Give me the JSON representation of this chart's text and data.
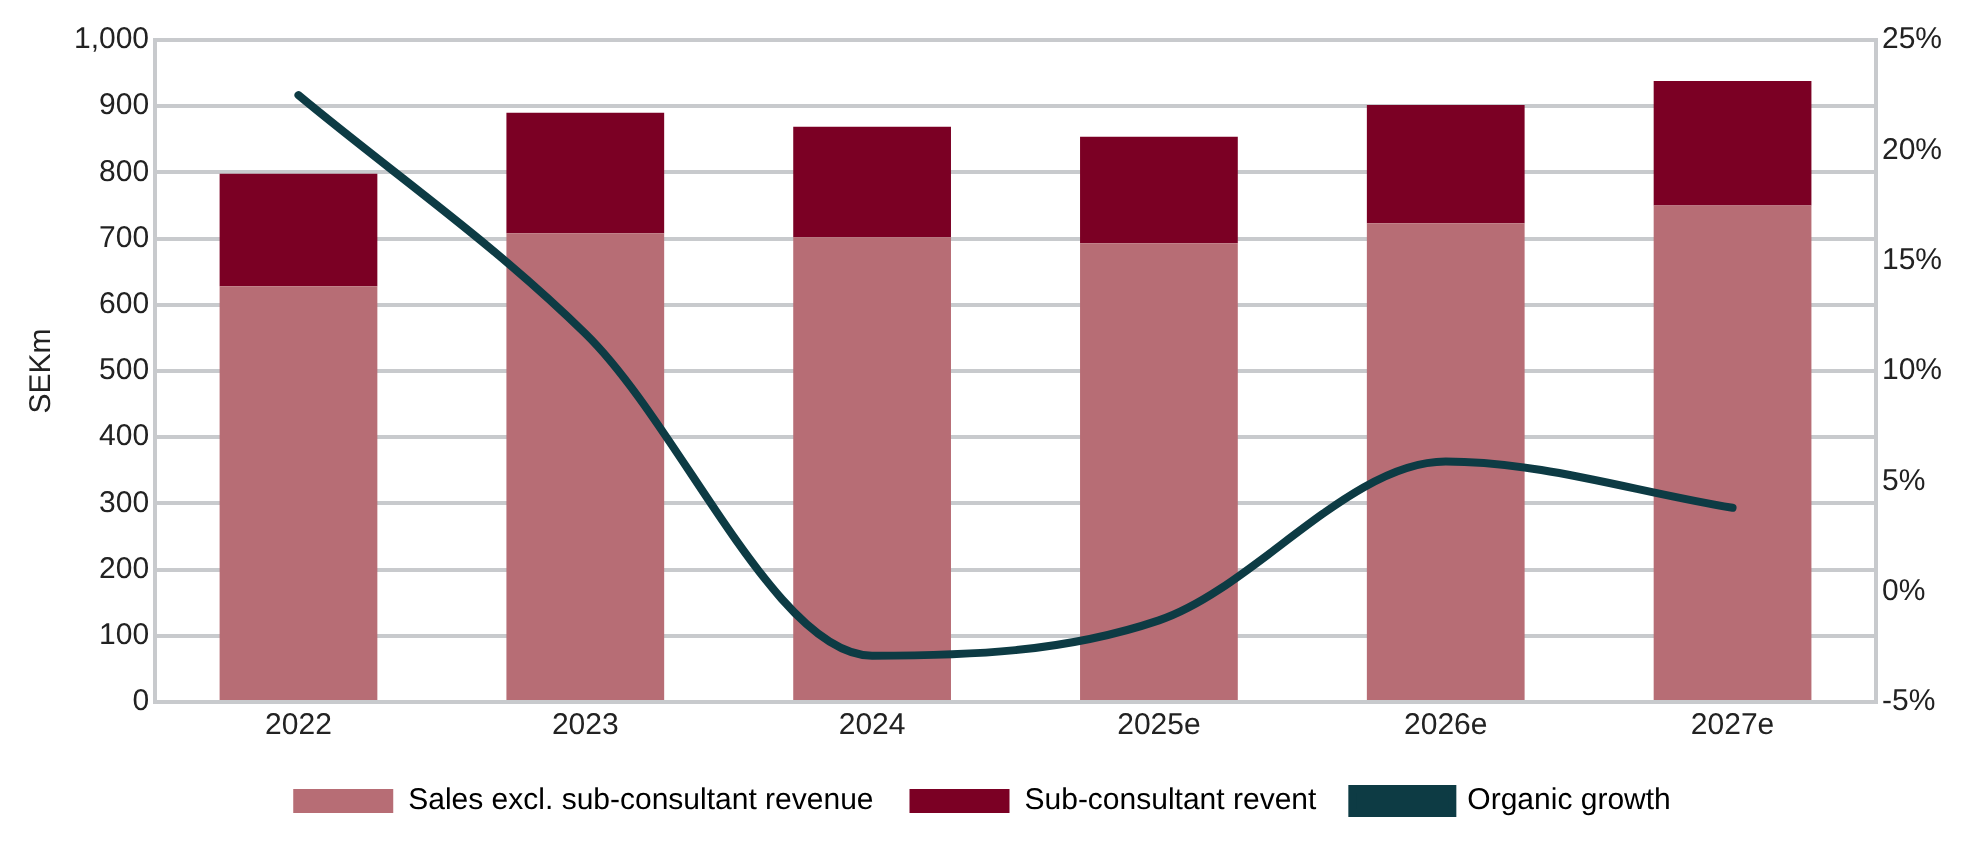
{
  "chart_data": {
    "type": "bar",
    "stacked": true,
    "ylabel": "SEKm",
    "categories": [
      "2022",
      "2023",
      "2024",
      "2025e",
      "2026e",
      "2027e"
    ],
    "series": [
      {
        "name": "Sales excl. sub-consultant revenue",
        "color": "#b76d75",
        "values": [
          628,
          708,
          702,
          693,
          723,
          750
        ]
      },
      {
        "name": "Sub-consultant revent",
        "color": "#7b0024",
        "values": [
          170,
          182,
          167,
          161,
          179,
          188
        ]
      },
      {
        "name": "Organic growth",
        "type": "line",
        "axis": "y2",
        "color": "#0d3b44",
        "values": [
          22.5,
          11.7,
          -2.9,
          -1.3,
          5.9,
          3.8
        ]
      }
    ],
    "ylim": [
      0,
      1000
    ],
    "yticks": [
      {
        "value": 0,
        "label": "0"
      },
      {
        "value": 100,
        "label": "100"
      },
      {
        "value": 200,
        "label": "200"
      },
      {
        "value": 300,
        "label": "300"
      },
      {
        "value": 400,
        "label": "400"
      },
      {
        "value": 500,
        "label": "500"
      },
      {
        "value": 600,
        "label": "600"
      },
      {
        "value": 700,
        "label": "700"
      },
      {
        "value": 800,
        "label": "800"
      },
      {
        "value": 900,
        "label": "900"
      },
      {
        "value": 1000,
        "label": "1,000"
      }
    ],
    "y2lim": [
      -5,
      25
    ],
    "y2ticks": [
      {
        "value": -5,
        "label": "-5%"
      },
      {
        "value": 0,
        "label": "0%"
      },
      {
        "value": 5,
        "label": "5%"
      },
      {
        "value": 10,
        "label": "10%"
      },
      {
        "value": 15,
        "label": "15%"
      },
      {
        "value": 20,
        "label": "20%"
      },
      {
        "value": 25,
        "label": "25%"
      }
    ],
    "grid": "y",
    "legend": "bottom",
    "marker": "none",
    "line_style": "solid"
  }
}
